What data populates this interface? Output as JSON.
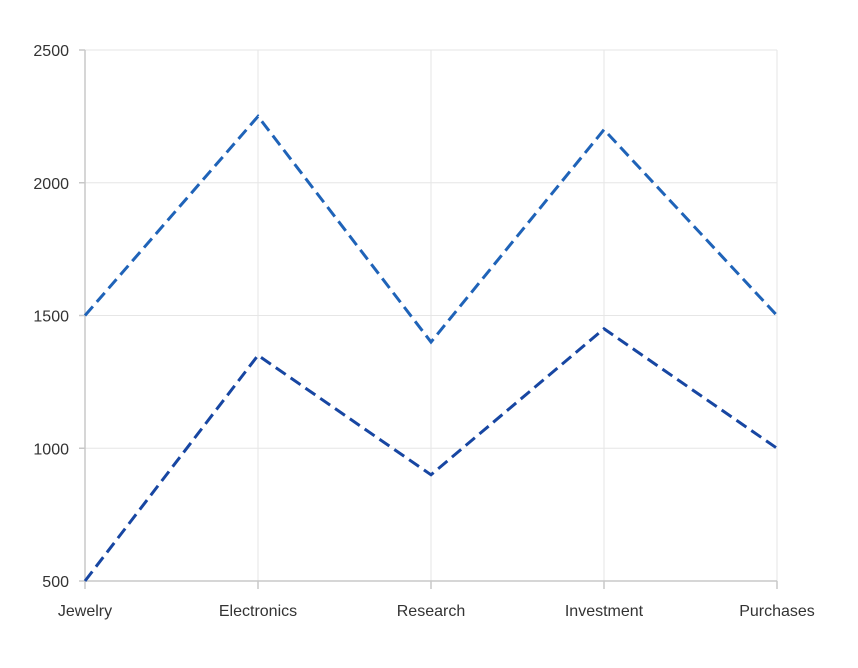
{
  "chart_data": {
    "type": "line",
    "title": "",
    "xlabel": "",
    "ylabel": "",
    "categories": [
      "Jewelry",
      "Electronics",
      "Research",
      "Investment",
      "Purchases"
    ],
    "ylim": [
      500,
      2500
    ],
    "yticks": [
      500,
      1000,
      1500,
      2000,
      2500
    ],
    "grid": true,
    "line_style": "dashed",
    "series": [
      {
        "values": [
          1500,
          2250,
          1400,
          2200,
          1500
        ],
        "color": "#1f63b8"
      },
      {
        "values": [
          500,
          1350,
          900,
          1450,
          1000
        ],
        "color": "#1746a2"
      }
    ]
  }
}
